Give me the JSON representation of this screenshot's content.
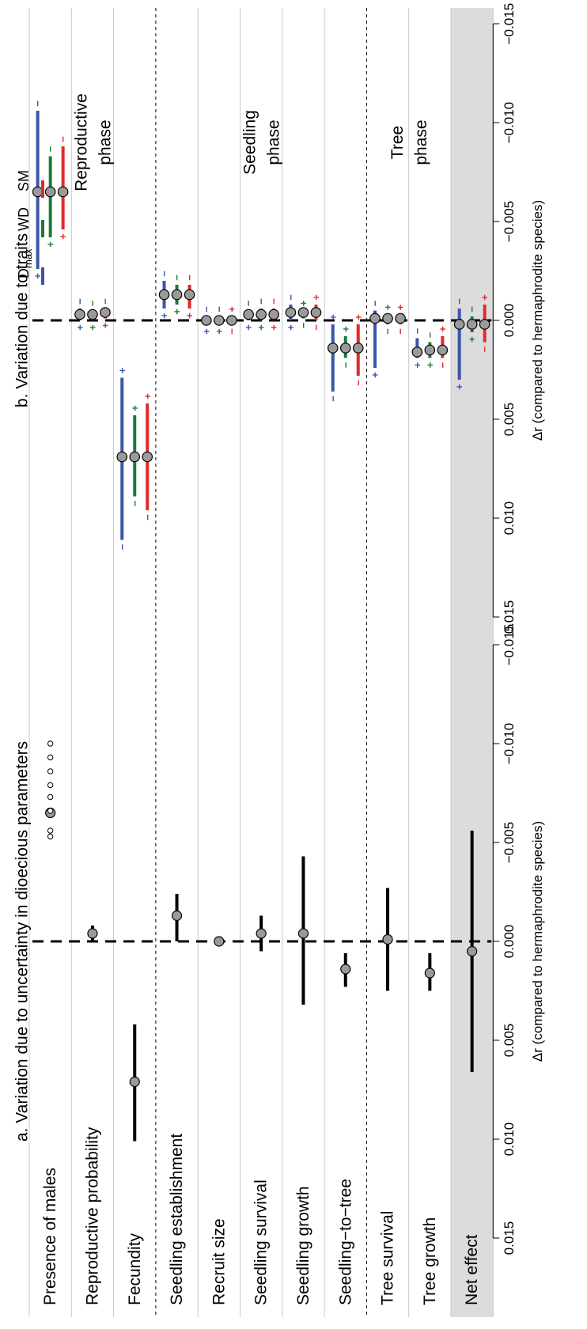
{
  "chart_data": {
    "type": "forest",
    "categories": [
      "Presence of males",
      "Reproductive probability",
      "Fecundity",
      "Seedling establishment",
      "Recruit size",
      "Seedling survival",
      "Seedling growth",
      "Seedling−to−tree",
      "Tree survival",
      "Tree growth",
      "Net effect"
    ],
    "phases": [
      {
        "label_lines": [
          "Reproductive",
          "phase"
        ],
        "rows": [
          0,
          2
        ]
      },
      {
        "label_lines": [
          "Seedling",
          "phase"
        ],
        "rows": [
          3,
          7
        ]
      },
      {
        "label_lines": [
          "Tree",
          "phase"
        ],
        "rows": [
          8,
          9
        ]
      }
    ],
    "highlighted_row": 10,
    "panels": [
      {
        "id": "a",
        "title": "a. Variation due to uncertainty in dioecious parameters",
        "axis_label": "Δr (compared to hermaphrodite species)",
        "xlim": [
          -0.015,
          0.015
        ],
        "ticks": [
          -0.015,
          -0.01,
          -0.005,
          0,
          0.005,
          0.01,
          0.015
        ],
        "tick_labels": [
          "−0.015",
          "−0.010",
          "−0.005",
          "0.000",
          "0.005",
          "0.010",
          "0.015"
        ],
        "reference_line": 0,
        "points": [
          {
            "row": 0,
            "estimate": -0.0065,
            "low": null,
            "high": null
          },
          {
            "row": 1,
            "estimate": -0.0004,
            "low": -0.0008,
            "high": 0.0
          },
          {
            "row": 2,
            "estimate": 0.0071,
            "low": 0.0042,
            "high": 0.0101
          },
          {
            "row": 3,
            "estimate": -0.0013,
            "low": -0.0024,
            "high": 0.0
          },
          {
            "row": 4,
            "estimate": 0.0,
            "low": null,
            "high": null
          },
          {
            "row": 5,
            "estimate": -0.0004,
            "low": -0.0013,
            "high": 0.0005
          },
          {
            "row": 6,
            "estimate": -0.0004,
            "low": -0.0043,
            "high": 0.0032
          },
          {
            "row": 7,
            "estimate": 0.0014,
            "low": 0.0006,
            "high": 0.0023
          },
          {
            "row": 8,
            "estimate": -0.0001,
            "low": -0.0027,
            "high": 0.0025
          },
          {
            "row": 9,
            "estimate": 0.0016,
            "low": 0.0006,
            "high": 0.0025
          },
          {
            "row": 10,
            "estimate": 0.0005,
            "low": -0.0056,
            "high": 0.0066
          }
        ],
        "males_scenarios": [
          -0.0053,
          -0.0056,
          -0.0066,
          -0.0073,
          -0.0079,
          -0.0086,
          -0.0093,
          -0.01
        ]
      },
      {
        "id": "b",
        "title": "b. Variation due to traits",
        "axis_label": "Δr (compared to hermaphrodite species)",
        "xlim": [
          -0.015,
          0.015
        ],
        "ticks": [
          -0.015,
          -0.01,
          -0.005,
          0,
          0.005,
          0.01,
          0.015
        ],
        "tick_labels": [
          "−0.015",
          "−0.010",
          "−0.005",
          "0.000",
          "0.005",
          "0.010",
          "0.015"
        ],
        "reference_line": 0,
        "series": [
          {
            "name": "D",
            "name_sub": "max",
            "color": "#3a56a8",
            "points": [
              {
                "row": 0,
                "estimate": -0.0065,
                "low": -0.0106,
                "high": -0.0026,
                "sign_low": "−",
                "sign_high": "+"
              },
              {
                "row": 1,
                "estimate": -0.0003,
                "low": -0.0006,
                "high": 0.0,
                "sign_low": "−",
                "sign_high": "+"
              },
              {
                "row": 2,
                "estimate": 0.0069,
                "low": 0.0029,
                "high": 0.0111,
                "sign_low": "+",
                "sign_high": "−"
              },
              {
                "row": 3,
                "estimate": -0.0013,
                "low": -0.002,
                "high": -0.0006,
                "sign_low": "−",
                "sign_high": "+"
              },
              {
                "row": 4,
                "estimate": 0.0,
                "low": -0.0002,
                "high": 0.0002,
                "sign_low": "−",
                "sign_high": "+"
              },
              {
                "row": 5,
                "estimate": -0.0003,
                "low": -0.0005,
                "high": 0.0,
                "sign_low": "−",
                "sign_high": "+"
              },
              {
                "row": 6,
                "estimate": -0.0004,
                "low": -0.0008,
                "high": 0.0,
                "sign_low": "−",
                "sign_high": "+"
              },
              {
                "row": 7,
                "estimate": 0.0014,
                "low": 0.0002,
                "high": 0.0036,
                "sign_low": "+",
                "sign_high": "−"
              },
              {
                "row": 8,
                "estimate": -0.0001,
                "low": -0.0005,
                "high": 0.0024,
                "sign_low": "−",
                "sign_high": "+"
              },
              {
                "row": 9,
                "estimate": 0.0016,
                "low": 0.0009,
                "high": 0.0019,
                "sign_low": "−",
                "sign_high": "+"
              },
              {
                "row": 10,
                "estimate": 0.0002,
                "low": -0.0006,
                "high": 0.003,
                "sign_low": "−",
                "sign_high": "+"
              }
            ]
          },
          {
            "name": "WD",
            "name_sub": "",
            "color": "#1b7a3a",
            "points": [
              {
                "row": 0,
                "estimate": -0.0065,
                "low": -0.0083,
                "high": -0.0042,
                "sign_low": "−",
                "sign_high": "+"
              },
              {
                "row": 1,
                "estimate": -0.0003,
                "low": -0.0005,
                "high": 0.0,
                "sign_low": "−",
                "sign_high": "+"
              },
              {
                "row": 2,
                "estimate": 0.0069,
                "low": 0.0048,
                "high": 0.0089,
                "sign_low": "+",
                "sign_high": "−"
              },
              {
                "row": 3,
                "estimate": -0.0013,
                "low": -0.0018,
                "high": -0.0008,
                "sign_low": "−",
                "sign_high": "+"
              },
              {
                "row": 4,
                "estimate": 0.0,
                "low": -0.0002,
                "high": 0.0002,
                "sign_low": "−",
                "sign_high": "+"
              },
              {
                "row": 5,
                "estimate": -0.0003,
                "low": -0.0006,
                "high": 0.0,
                "sign_low": "−",
                "sign_high": "+"
              },
              {
                "row": 6,
                "estimate": -0.0004,
                "low": -0.0005,
                "high": -0.0001,
                "sign_low": "+",
                "sign_high": "−"
              },
              {
                "row": 7,
                "estimate": 0.0014,
                "low": 0.0008,
                "high": 0.0019,
                "sign_low": "+",
                "sign_high": "−"
              },
              {
                "row": 8,
                "estimate": -0.0001,
                "low": -0.0003,
                "high": 0.0002,
                "sign_low": "+",
                "sign_high": "−"
              },
              {
                "row": 9,
                "estimate": 0.0015,
                "low": 0.0011,
                "high": 0.0019,
                "sign_low": "−",
                "sign_high": "+"
              },
              {
                "row": 10,
                "estimate": 0.0002,
                "low": -0.0002,
                "high": 0.0006,
                "sign_low": "−",
                "sign_high": "+"
              }
            ]
          },
          {
            "name": "SM",
            "name_sub": "",
            "color": "#e02a2a",
            "points": [
              {
                "row": 0,
                "estimate": -0.0065,
                "low": -0.0088,
                "high": -0.0046,
                "sign_low": "−",
                "sign_high": "+"
              },
              {
                "row": 1,
                "estimate": -0.0004,
                "low": -0.0006,
                "high": -0.0001,
                "sign_low": "−",
                "sign_high": "+"
              },
              {
                "row": 2,
                "estimate": 0.0069,
                "low": 0.0042,
                "high": 0.0096,
                "sign_low": "+",
                "sign_high": "−"
              },
              {
                "row": 3,
                "estimate": -0.0013,
                "low": -0.0018,
                "high": -0.0006,
                "sign_low": "−",
                "sign_high": "+"
              },
              {
                "row": 4,
                "estimate": 0.0,
                "low": -0.0002,
                "high": 0.0002,
                "sign_low": "+",
                "sign_high": "−"
              },
              {
                "row": 5,
                "estimate": -0.0003,
                "low": -0.0006,
                "high": 0.0,
                "sign_low": "−",
                "sign_high": "+"
              },
              {
                "row": 6,
                "estimate": -0.0004,
                "low": -0.0008,
                "high": 0.0,
                "sign_low": "+",
                "sign_high": "−"
              },
              {
                "row": 7,
                "estimate": 0.0014,
                "low": 0.0002,
                "high": 0.0028,
                "sign_low": "+",
                "sign_high": "−"
              },
              {
                "row": 8,
                "estimate": -0.0001,
                "low": -0.0003,
                "high": 0.0002,
                "sign_low": "+",
                "sign_high": "−"
              },
              {
                "row": 9,
                "estimate": 0.0015,
                "low": 0.0008,
                "high": 0.0019,
                "sign_low": "+",
                "sign_high": "−"
              },
              {
                "row": 10,
                "estimate": 0.0002,
                "low": -0.0008,
                "high": 0.0011,
                "sign_low": "+",
                "sign_high": "−"
              }
            ]
          }
        ]
      }
    ]
  }
}
